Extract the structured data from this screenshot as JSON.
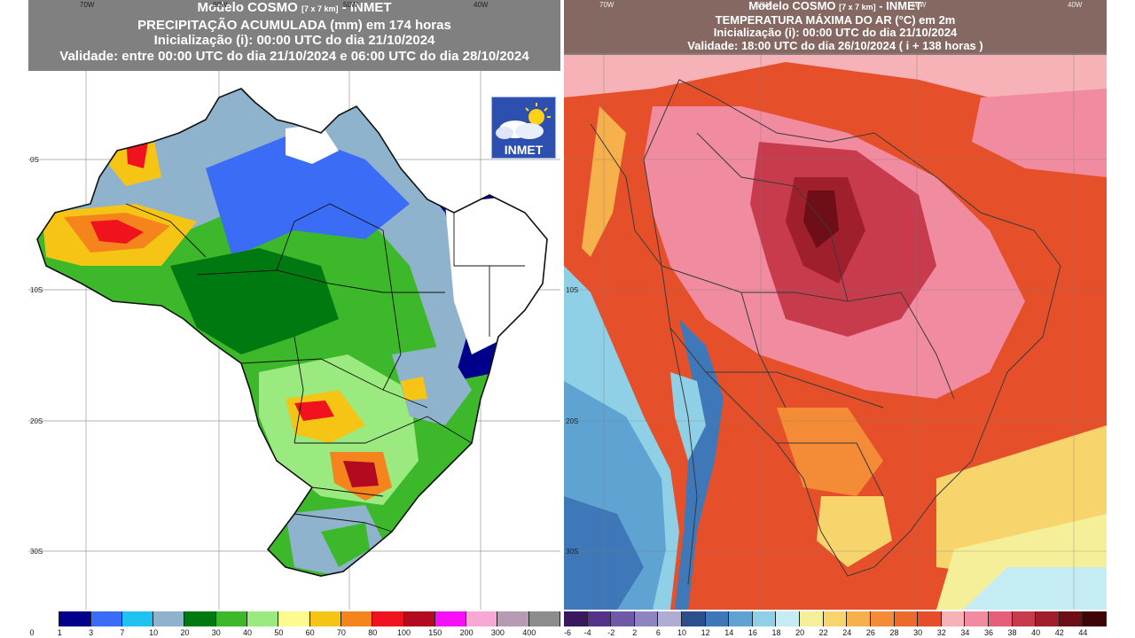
{
  "left_map": {
    "title_line1": "Modelo COSMO",
    "resolution_note": "[7 x 7 km]",
    "title_line1_suffix": "- INMET",
    "title_line2": "PRECIPITAÇÃO ACUMULADA (mm) em 174 horas",
    "title_line3": "Inicialização (i): 00:00 UTC do dia 21/10/2024",
    "title_line4": "Validade: entre 00:00 UTC do dia 21/10/2024 e 06:00 UTC do dia 28/10/2024",
    "logo_text": "INMET",
    "top_ticks": [
      "70W",
      "60W",
      "50W",
      "40W"
    ],
    "side_ticks": [
      "10N",
      "0S",
      "10S",
      "20S",
      "30S"
    ],
    "legend": {
      "values": [
        "0",
        "1",
        "3",
        "7",
        "10",
        "20",
        "30",
        "40",
        "50",
        "60",
        "70",
        "80",
        "100",
        "150",
        "200",
        "300",
        "400"
      ],
      "colors": [
        "#ffffff",
        "#00008b",
        "#3a6cf5",
        "#1fc3f2",
        "#8fb3cc",
        "#007a10",
        "#3cb82a",
        "#9bea7f",
        "#fdfb8f",
        "#f6c415",
        "#f5841c",
        "#f0131e",
        "#b30a1f",
        "#f710f7",
        "#f7a9d4",
        "#b79bb3",
        "#8c8c8c"
      ]
    }
  },
  "right_map": {
    "title_line1": "Modelo COSMO",
    "resolution_note": "[7 x 7 km]",
    "title_line1_suffix": "- INMET",
    "title_line2": "TEMPERATURA MÁXIMA DO AR (°C) em 2m",
    "title_line3": "Inicialização (i): 00:00 UTC do dia 21/10/2024",
    "title_line4": "Validade: 18:00 UTC do dia 26/10/2024 ( i + 138 horas )",
    "top_ticks": [
      "70W",
      "60W",
      "50W",
      "40W"
    ],
    "side_ticks": [
      "10N",
      "0S",
      "10S",
      "20S",
      "30S"
    ],
    "legend": {
      "values": [
        "-6",
        "-4",
        "-2",
        "2",
        "6",
        "10",
        "12",
        "14",
        "16",
        "18",
        "20",
        "22",
        "24",
        "26",
        "28",
        "30",
        "32",
        "34",
        "36",
        "38",
        "40",
        "42",
        "44"
      ],
      "colors": [
        "#3a1860",
        "#53348a",
        "#6e5aa8",
        "#8e84c2",
        "#b0add5",
        "#2a4f8c",
        "#3e78b8",
        "#5fa3d2",
        "#8fd0e6",
        "#c5ecf2",
        "#f5ef9a",
        "#f8d46c",
        "#f7b14c",
        "#f48b37",
        "#ec6a2c",
        "#e5502a",
        "#f7b2b8",
        "#f08ba0",
        "#e55f7a",
        "#c73b4d",
        "#9f1f2c",
        "#6e0e17",
        "#3e0407"
      ]
    }
  }
}
